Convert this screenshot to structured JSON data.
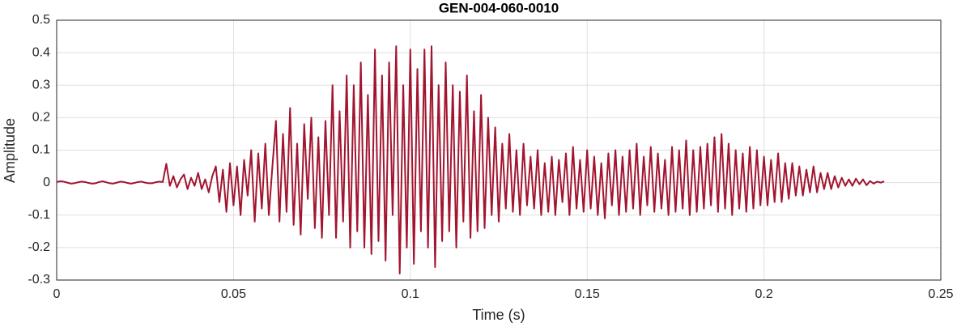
{
  "chart_data": {
    "type": "line",
    "title": "GEN-004-060-0010",
    "x_label": "Time (s)",
    "y_label": "Amplitude",
    "xlim": [
      0,
      0.25
    ],
    "xticks": [
      0,
      0.05,
      0.1,
      0.15,
      0.2,
      0.25
    ],
    "ylim": [
      -0.3,
      0.5
    ],
    "yticks": [
      -0.3,
      -0.2,
      -0.1,
      0,
      0.1,
      0.2,
      0.3,
      0.4,
      0.5
    ],
    "grid": true,
    "x": [
      0,
      0.001,
      0.002,
      0.003,
      0.004,
      0.005,
      0.006,
      0.007,
      0.008,
      0.009,
      0.01,
      0.011,
      0.012,
      0.013,
      0.014,
      0.015,
      0.016,
      0.017,
      0.018,
      0.019,
      0.02,
      0.021,
      0.022,
      0.023,
      0.024,
      0.025,
      0.026,
      0.027,
      0.028,
      0.029,
      0.03,
      0.031,
      0.032,
      0.033,
      0.034,
      0.035,
      0.036,
      0.037,
      0.038,
      0.039,
      0.04,
      0.041,
      0.042,
      0.043,
      0.044,
      0.045,
      0.046,
      0.047,
      0.048,
      0.049,
      0.05,
      0.051,
      0.052,
      0.053,
      0.054,
      0.055,
      0.056,
      0.057,
      0.058,
      0.059,
      0.06,
      0.061,
      0.062,
      0.063,
      0.064,
      0.065,
      0.066,
      0.067,
      0.068,
      0.069,
      0.07,
      0.071,
      0.072,
      0.073,
      0.074,
      0.075,
      0.076,
      0.077,
      0.078,
      0.079,
      0.08,
      0.081,
      0.082,
      0.083,
      0.084,
      0.085,
      0.086,
      0.087,
      0.088,
      0.089,
      0.09,
      0.091,
      0.092,
      0.093,
      0.094,
      0.095,
      0.096,
      0.097,
      0.098,
      0.099,
      0.1,
      0.101,
      0.102,
      0.103,
      0.104,
      0.105,
      0.106,
      0.107,
      0.108,
      0.109,
      0.11,
      0.111,
      0.112,
      0.113,
      0.114,
      0.115,
      0.116,
      0.117,
      0.118,
      0.119,
      0.12,
      0.121,
      0.122,
      0.123,
      0.124,
      0.125,
      0.126,
      0.127,
      0.128,
      0.129,
      0.13,
      0.131,
      0.132,
      0.133,
      0.134,
      0.135,
      0.136,
      0.137,
      0.138,
      0.139,
      0.14,
      0.141,
      0.142,
      0.143,
      0.144,
      0.145,
      0.146,
      0.147,
      0.148,
      0.149,
      0.15,
      0.151,
      0.152,
      0.153,
      0.154,
      0.155,
      0.156,
      0.157,
      0.158,
      0.159,
      0.16,
      0.161,
      0.162,
      0.163,
      0.164,
      0.165,
      0.166,
      0.167,
      0.168,
      0.169,
      0.17,
      0.171,
      0.172,
      0.173,
      0.174,
      0.175,
      0.176,
      0.177,
      0.178,
      0.179,
      0.18,
      0.181,
      0.182,
      0.183,
      0.184,
      0.185,
      0.186,
      0.187,
      0.188,
      0.189,
      0.19,
      0.191,
      0.192,
      0.193,
      0.194,
      0.195,
      0.196,
      0.197,
      0.198,
      0.199,
      0.2,
      0.201,
      0.202,
      0.203,
      0.204,
      0.205,
      0.206,
      0.207,
      0.208,
      0.209,
      0.21,
      0.211,
      0.212,
      0.213,
      0.214,
      0.215,
      0.216,
      0.217,
      0.218,
      0.219,
      0.22,
      0.221,
      0.222,
      0.223,
      0.224,
      0.225,
      0.226,
      0.227,
      0.228,
      0.229,
      0.23,
      0.231,
      0.232,
      0.233,
      0.234
    ],
    "series": [
      {
        "color": "#a2142f",
        "values": [
          0.002,
          0.004,
          0.003,
          0,
          -0.003,
          -0.002,
          0.001,
          0.003,
          0.002,
          -0.001,
          -0.003,
          -0.002,
          0.002,
          0.004,
          0.001,
          -0.002,
          -0.003,
          0,
          0.003,
          0.002,
          -0.001,
          -0.003,
          -0.001,
          0.002,
          0.003,
          0,
          -0.002,
          -0.002,
          0.001,
          0.003,
          0.002,
          0.058,
          -0.01,
          0.02,
          -0.015,
          0.01,
          0.025,
          -0.02,
          0.015,
          -0.01,
          0.03,
          -0.02,
          0.01,
          -0.03,
          0.02,
          0.05,
          -0.06,
          0.04,
          -0.09,
          0.06,
          -0.07,
          0.05,
          -0.1,
          0.07,
          -0.04,
          0.1,
          -0.12,
          0.09,
          -0.08,
          0.12,
          -0.1,
          0.05,
          0.19,
          -0.12,
          0.15,
          -0.09,
          0.23,
          -0.13,
          0.12,
          -0.16,
          0.18,
          -0.05,
          0.2,
          -0.14,
          0.14,
          -0.17,
          0.19,
          -0.1,
          0.3,
          -0.17,
          0.22,
          -0.12,
          0.33,
          -0.2,
          0.3,
          -0.15,
          0.37,
          -0.2,
          0.27,
          -0.22,
          0.41,
          -0.18,
          0.33,
          -0.24,
          0.37,
          -0.1,
          0.42,
          -0.28,
          0.3,
          -0.2,
          0.41,
          -0.25,
          0.35,
          -0.15,
          0.41,
          -0.2,
          0.42,
          -0.26,
          0.3,
          -0.18,
          0.37,
          -0.15,
          0.3,
          -0.2,
          0.28,
          -0.12,
          0.33,
          -0.17,
          0.22,
          -0.15,
          0.27,
          -0.14,
          0.2,
          -0.1,
          0.17,
          -0.12,
          0.12,
          -0.08,
          0.15,
          -0.09,
          0.1,
          -0.1,
          0.12,
          -0.07,
          0.08,
          -0.08,
          0.1,
          -0.1,
          0.06,
          -0.09,
          0.08,
          -0.1,
          0.07,
          -0.06,
          0.09,
          -0.1,
          0.11,
          -0.08,
          0.07,
          -0.09,
          0.1,
          -0.08,
          0.08,
          -0.1,
          0.06,
          -0.11,
          0.09,
          -0.07,
          0.1,
          -0.1,
          0.08,
          -0.09,
          0.1,
          -0.08,
          0.12,
          -0.1,
          0.08,
          -0.07,
          0.11,
          -0.09,
          0.09,
          -0.08,
          0.07,
          -0.1,
          0.11,
          -0.09,
          0.1,
          -0.08,
          0.13,
          -0.1,
          0.1,
          -0.09,
          0.11,
          -0.08,
          0.12,
          -0.07,
          0.14,
          -0.09,
          0.15,
          -0.08,
          0.12,
          -0.1,
          0.1,
          -0.08,
          0.09,
          -0.09,
          0.11,
          -0.08,
          0.1,
          -0.07,
          0.08,
          -0.07,
          0.07,
          -0.06,
          0.09,
          -0.06,
          0.06,
          -0.05,
          0.06,
          -0.04,
          0.05,
          -0.04,
          0.04,
          -0.03,
          0.05,
          -0.03,
          0.03,
          -0.02,
          0.03,
          -0.02,
          0.02,
          -0.015,
          0.015,
          -0.01,
          0.01,
          -0.01,
          0.012,
          -0.005,
          0.01,
          -0.008,
          0.005,
          -0.003,
          0.003,
          0,
          0.004
        ]
      }
    ]
  }
}
